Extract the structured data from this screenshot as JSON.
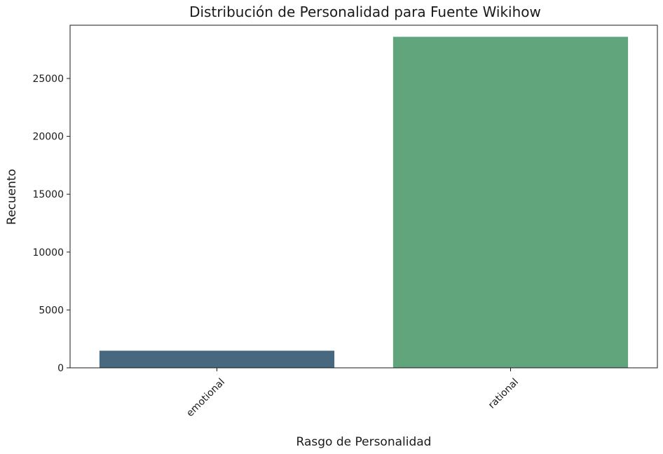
{
  "chart_data": {
    "type": "bar",
    "title": "Distribución de Personalidad para Fuente Wikihow",
    "xlabel": "Rasgo de Personalidad",
    "ylabel": "Recuento",
    "categories": [
      "emotional",
      "rational"
    ],
    "values": [
      1480,
      28600
    ],
    "colors": [
      "#48687f",
      "#60a57c"
    ],
    "ylim": [
      0,
      29600
    ],
    "yticks": [
      0,
      5000,
      10000,
      15000,
      20000,
      25000
    ],
    "grid": false,
    "x_tick_rotation": 45
  }
}
